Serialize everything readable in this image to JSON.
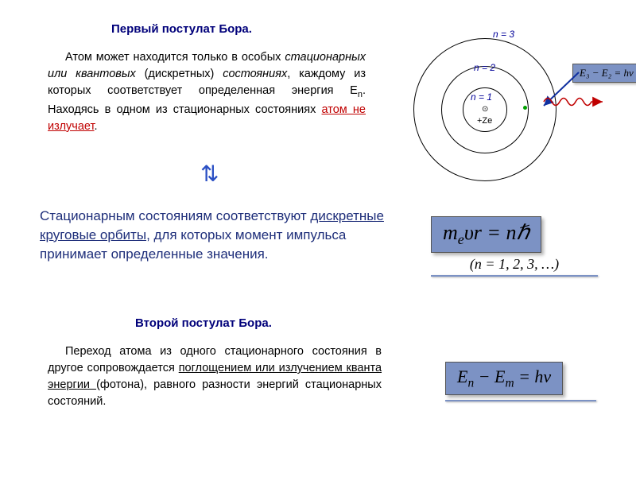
{
  "title1": "Первый постулат Бора.",
  "para1_pre": "Атом может находится только в особых ",
  "para1_it": "стационарных или квантовых ",
  "para1_in2": "(дискретных) ",
  "para1_it2": "состояниях",
  "para1_mid": ", каждому из которых соответствует определенная энергия E",
  "para1_sub": "n",
  "para1_mid2": ". Находясь в одном из стационарных состояниях ",
  "para1_red": "атом не излучает",
  "para1_end": ".",
  "para2_a": "Стационарным состояниям соответствуют ",
  "para2_ul": "дискретные круговые орбиты",
  "para2_b": ", для которых момент импульса принимает определенные значения.",
  "title2": "Второй постулат Бора.",
  "para3_a": "Переход атома из одного стационарного состояния в другое сопровождается ",
  "para3_ul": "поглощением или излучением кванта энергии ",
  "para3_b": "(фотона), равного разности энергий стационарных состояний.",
  "diagram": {
    "n3": "n = 3",
    "n2": "n = 2",
    "n1": "n = 1",
    "ze": "+Ze",
    "eqA": "E₃ − E₂ = hν",
    "orbit_color": "#000000",
    "label_color": "#000099",
    "photon_color": "#c00000",
    "arrow_color": "#1030a0"
  },
  "eq1": {
    "formula_html": "m<span class=\"subm\">e</span>υr = nℏ",
    "caption": "(n = 1, 2, 3, …)"
  },
  "eq2": {
    "formula_html": "E<span class=\"subm\">n</span> − E<span class=\"subm\">m</span> = hν"
  },
  "colors": {
    "accent": "#7c92c4",
    "heading": "#00007a",
    "body_blue": "#1e2e7a",
    "red": "#c00000"
  }
}
